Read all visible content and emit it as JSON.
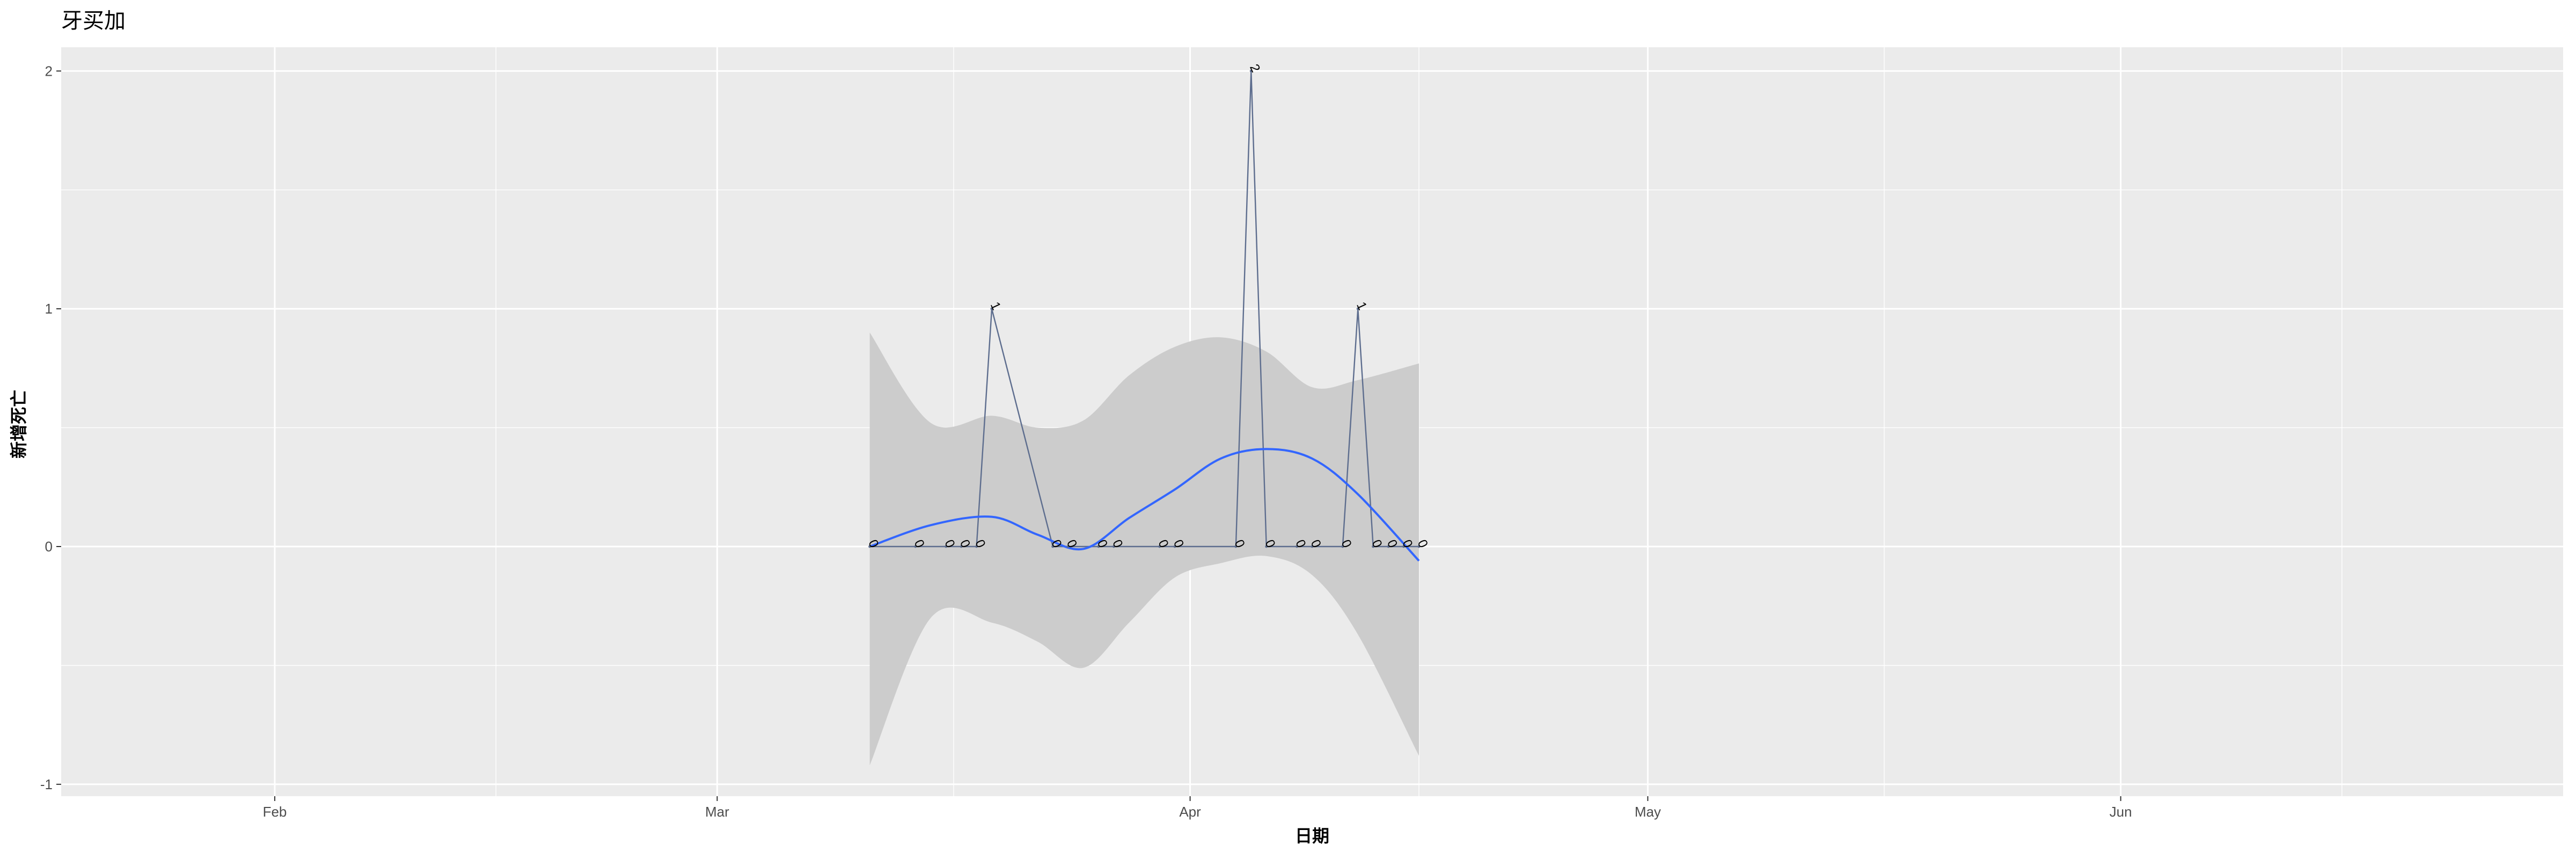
{
  "chart_data": {
    "type": "line",
    "title": "牙买加",
    "xlabel": "日期",
    "ylabel": "新增死亡",
    "x_tick_labels": [
      "Feb",
      "Mar",
      "Apr",
      "May",
      "Jun"
    ],
    "x_tick_dates": [
      "2020-02-01",
      "2020-03-01",
      "2020-04-01",
      "2020-05-01",
      "2020-06-01"
    ],
    "y_tick_labels": [
      "-1",
      "0",
      "1",
      "2"
    ],
    "xlim": [
      "2020-01-18",
      "2020-06-30"
    ],
    "ylim": [
      -1.05,
      2.1
    ],
    "grid": true,
    "legend": "none",
    "series": [
      {
        "x": [
          "2020-03-11",
          "2020-03-14",
          "2020-03-16",
          "2020-03-17",
          "2020-03-18",
          "2020-03-19",
          "2020-03-23",
          "2020-03-24",
          "2020-03-26",
          "2020-03-27",
          "2020-03-30",
          "2020-03-31",
          "2020-04-04",
          "2020-04-05",
          "2020-04-06",
          "2020-04-08",
          "2020-04-09",
          "2020-04-11",
          "2020-04-12",
          "2020-04-13",
          "2020-04-14",
          "2020-04-15",
          "2020-04-16"
        ],
        "values": [
          0,
          0,
          0,
          0,
          0,
          1,
          0,
          0,
          0,
          0,
          0,
          0,
          0,
          2,
          0,
          0,
          0,
          0,
          1,
          0,
          0,
          0,
          0
        ]
      }
    ],
    "data_labels": [
      "0",
      "0",
      "0",
      "0",
      "0",
      "1",
      "0",
      "0",
      "0",
      "0",
      "0",
      "0",
      "0",
      "2",
      "0",
      "0",
      "0",
      "0",
      "1",
      "0",
      "0",
      "0",
      "0"
    ],
    "smooth": {
      "x": [
        "2020-03-11",
        "2020-03-15",
        "2020-03-19",
        "2020-03-22",
        "2020-03-25",
        "2020-03-28",
        "2020-03-31",
        "2020-04-03",
        "2020-04-06",
        "2020-04-09",
        "2020-04-12",
        "2020-04-16"
      ],
      "y": [
        0,
        0.09,
        0.125,
        0.05,
        -0.01,
        0.12,
        0.24,
        0.37,
        0.41,
        0.37,
        0.22,
        -0.06
      ],
      "ci_lower": [
        -0.92,
        -0.3,
        -0.32,
        -0.4,
        -0.51,
        -0.32,
        -0.13,
        -0.07,
        -0.04,
        -0.12,
        -0.37,
        -0.88
      ],
      "ci_upper": [
        0.9,
        0.52,
        0.55,
        0.5,
        0.53,
        0.72,
        0.84,
        0.88,
        0.82,
        0.67,
        0.7,
        0.77
      ]
    },
    "colors": {
      "panel": "#ebebeb",
      "grid": "#ffffff",
      "line": "#5d6d8e",
      "smooth": "#3366ff",
      "ribbon": "#cccccc"
    }
  }
}
